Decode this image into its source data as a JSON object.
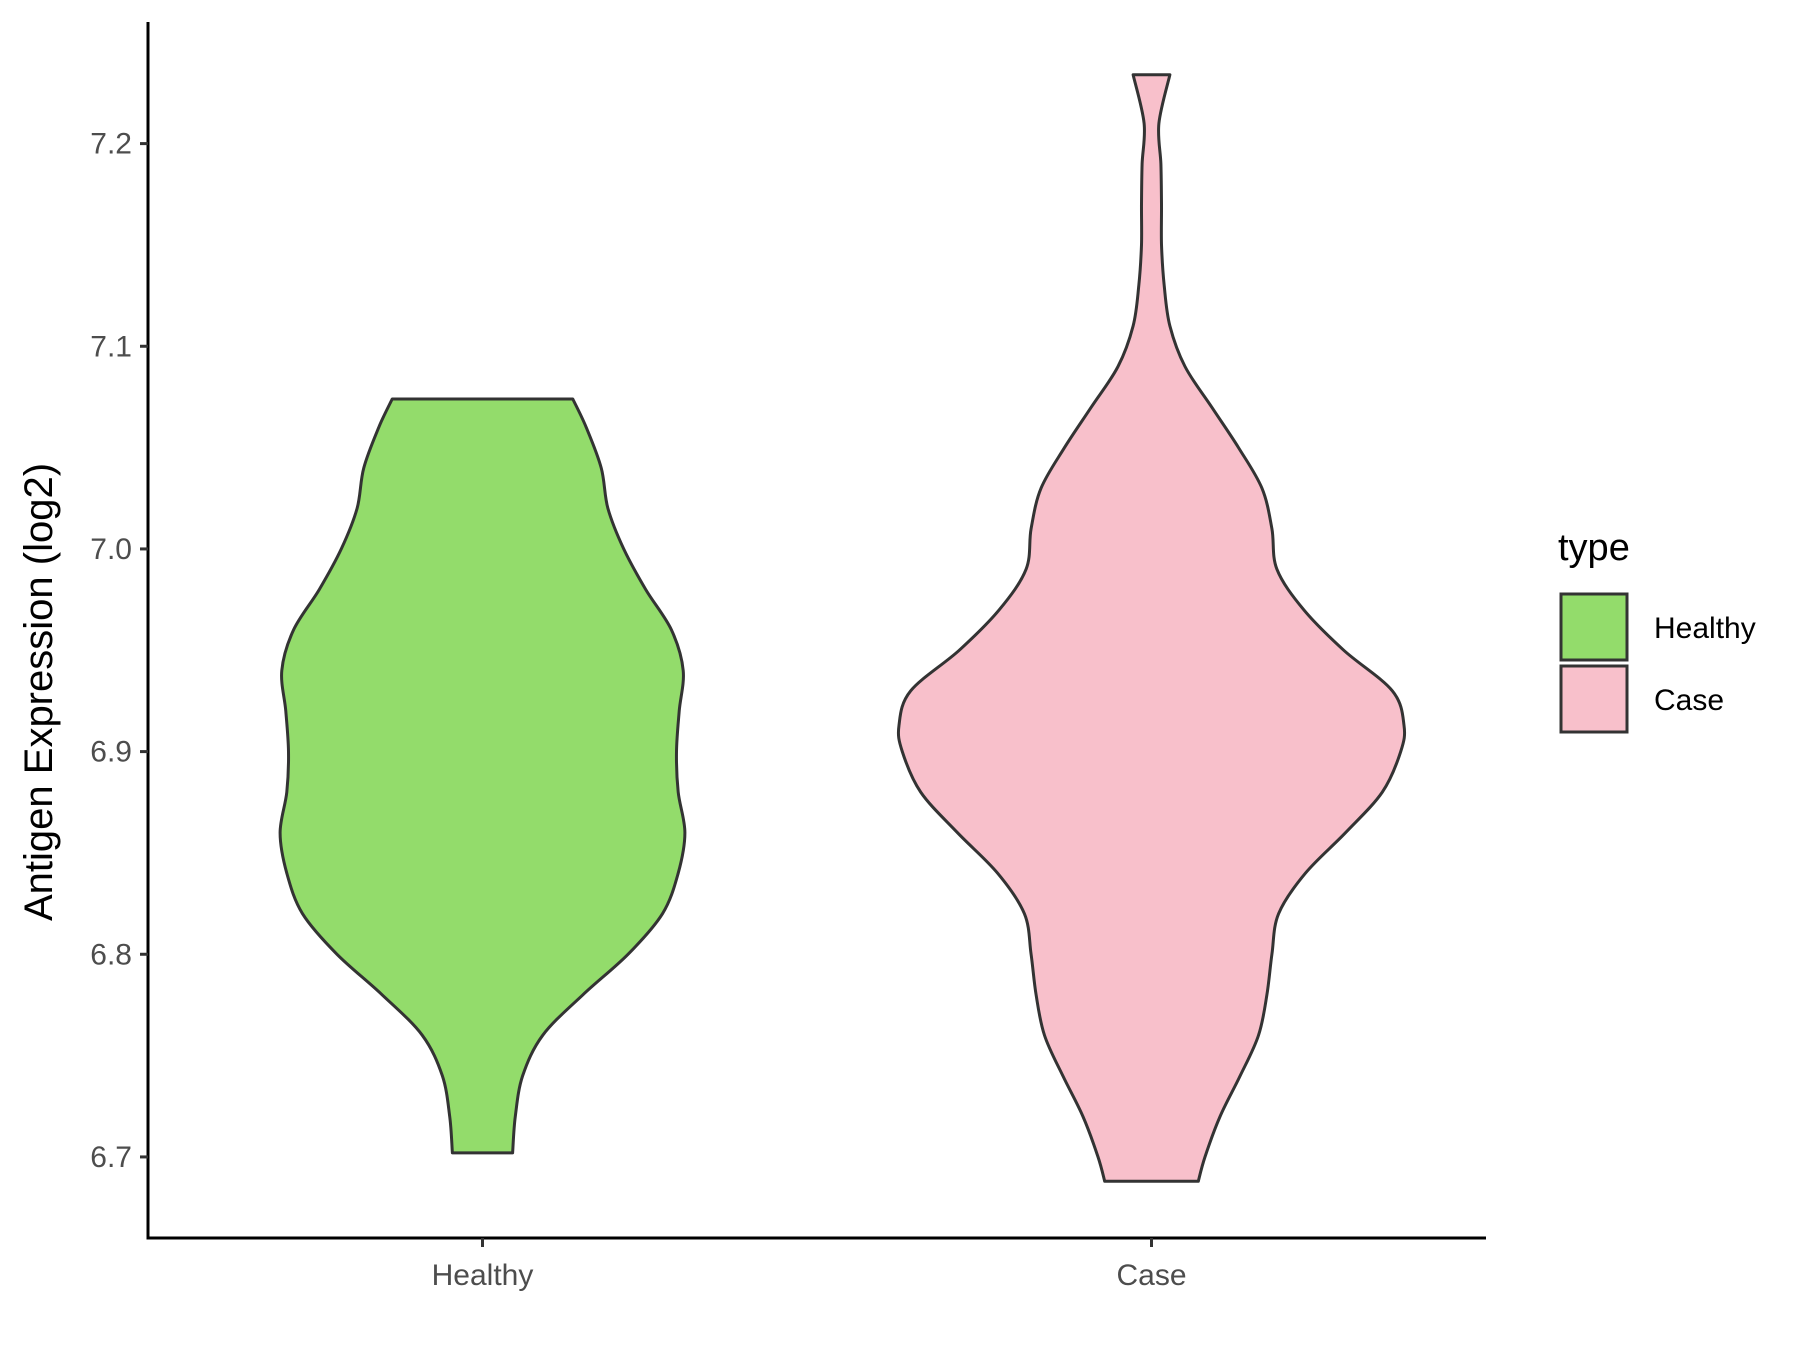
{
  "chart_data": {
    "type": "violin",
    "title": "",
    "xlabel": "",
    "ylabel": "Antigen Expression (log2)",
    "categories": [
      "Healthy",
      "Case"
    ],
    "ylim": [
      6.66,
      7.26
    ],
    "yticks": [
      6.7,
      6.8,
      6.9,
      7.0,
      7.1,
      7.2
    ],
    "ytick_labels": [
      "6.7",
      "6.8",
      "6.9",
      "7.0",
      "7.1",
      "7.2"
    ],
    "grid": false,
    "legend": {
      "title": "type",
      "placement": "right",
      "entries": [
        "Healthy",
        "Case"
      ]
    },
    "series": [
      {
        "name": "Healthy",
        "color": "#93dc6b",
        "min": 6.702,
        "max": 7.074,
        "density_half_width": [
          [
            6.702,
            0.09
          ],
          [
            6.72,
            0.098
          ],
          [
            6.74,
            0.12
          ],
          [
            6.76,
            0.18
          ],
          [
            6.78,
            0.3
          ],
          [
            6.8,
            0.435
          ],
          [
            6.82,
            0.538
          ],
          [
            6.84,
            0.585
          ],
          [
            6.86,
            0.605
          ],
          [
            6.88,
            0.585
          ],
          [
            6.9,
            0.58
          ],
          [
            6.92,
            0.588
          ],
          [
            6.94,
            0.6
          ],
          [
            6.96,
            0.565
          ],
          [
            6.98,
            0.488
          ],
          [
            7.0,
            0.422
          ],
          [
            7.02,
            0.375
          ],
          [
            7.04,
            0.355
          ],
          [
            7.06,
            0.31
          ],
          [
            7.074,
            0.27
          ]
        ]
      },
      {
        "name": "Case",
        "color": "#f8c0cb",
        "min": 6.688,
        "max": 7.234,
        "density_half_width": [
          [
            6.688,
            0.14
          ],
          [
            6.7,
            0.16
          ],
          [
            6.72,
            0.205
          ],
          [
            6.74,
            0.265
          ],
          [
            6.76,
            0.32
          ],
          [
            6.78,
            0.345
          ],
          [
            6.8,
            0.36
          ],
          [
            6.82,
            0.38
          ],
          [
            6.84,
            0.46
          ],
          [
            6.86,
            0.58
          ],
          [
            6.88,
            0.69
          ],
          [
            6.9,
            0.745
          ],
          [
            6.913,
            0.755
          ],
          [
            6.93,
            0.72
          ],
          [
            6.95,
            0.575
          ],
          [
            6.97,
            0.455
          ],
          [
            6.99,
            0.375
          ],
          [
            7.01,
            0.36
          ],
          [
            7.03,
            0.33
          ],
          [
            7.05,
            0.26
          ],
          [
            7.07,
            0.18
          ],
          [
            7.09,
            0.1
          ],
          [
            7.11,
            0.055
          ],
          [
            7.13,
            0.038
          ],
          [
            7.15,
            0.03
          ],
          [
            7.17,
            0.03
          ],
          [
            7.19,
            0.028
          ],
          [
            7.21,
            0.022
          ],
          [
            7.234,
            0.055
          ]
        ]
      }
    ]
  }
}
